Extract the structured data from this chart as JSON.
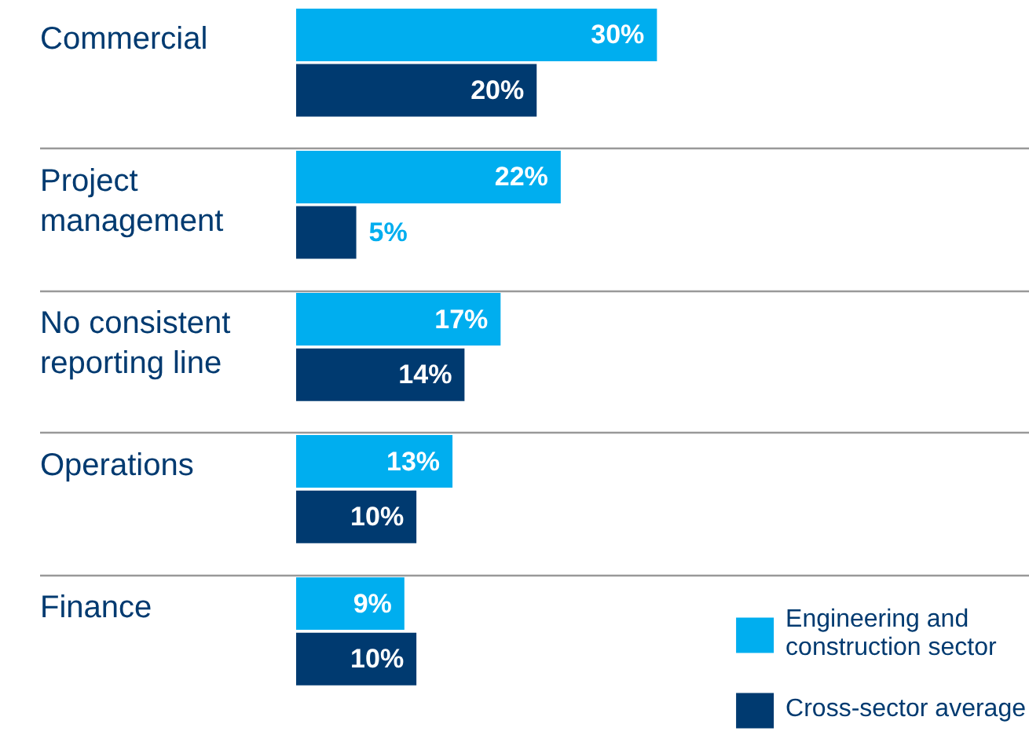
{
  "chart_data": {
    "type": "bar",
    "orientation": "horizontal",
    "categories": [
      "Commercial",
      "Project management",
      "No consistent reporting line",
      "Operations",
      "Finance"
    ],
    "series": [
      {
        "name": "Engineering and construction sector",
        "color": "#00aeef",
        "values": [
          30,
          22,
          17,
          13,
          9
        ],
        "value_labels": [
          "30%",
          "22%",
          "17%",
          "13%",
          "9%"
        ]
      },
      {
        "name": "Cross-sector average",
        "color": "#003a70",
        "values": [
          20,
          5,
          14,
          10,
          10
        ],
        "value_labels": [
          "20%",
          "5%",
          "14%",
          "10%",
          "10%"
        ]
      }
    ],
    "xlim": [
      0,
      61
    ],
    "grid": "y",
    "legend": "bottom right",
    "tick_labels": false
  }
}
